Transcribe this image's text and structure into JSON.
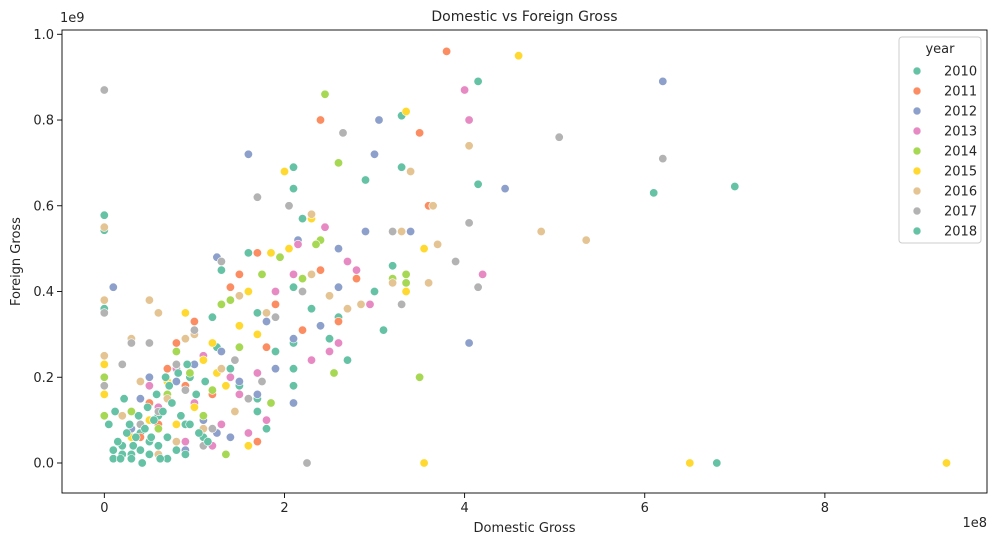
{
  "chart_data": {
    "type": "scatter",
    "title": "Domestic vs Foreign Gross",
    "xlabel": "Domestic Gross",
    "ylabel": "Foreign Gross",
    "x_offset_label": "1e8",
    "y_offset_label": "1e9",
    "xlim": [
      -0.47,
      9.8
    ],
    "ylim": [
      -0.07,
      1.01
    ],
    "xticks": [
      0,
      2,
      4,
      6,
      8
    ],
    "yticks": [
      0.0,
      0.2,
      0.4,
      0.6,
      0.8,
      1.0
    ],
    "xtick_labels": [
      "0",
      "2",
      "4",
      "6",
      "8"
    ],
    "ytick_labels": [
      "0.0",
      "0.2",
      "0.4",
      "0.6",
      "0.8",
      "1.0"
    ],
    "legend": {
      "title": "year",
      "position": "upper right"
    },
    "series": [
      {
        "name": "2010",
        "color": "#66c2a5",
        "points": [
          [
            0.0,
            0.578
          ],
          [
            0.0,
            0.543
          ],
          [
            0.0,
            0.36
          ],
          [
            1.3,
            0.45
          ],
          [
            1.2,
            0.34
          ],
          [
            1.6,
            0.49
          ],
          [
            1.7,
            0.35
          ],
          [
            1.7,
            0.15
          ],
          [
            2.1,
            0.69
          ],
          [
            2.1,
            0.64
          ],
          [
            2.1,
            0.41
          ],
          [
            2.1,
            0.28
          ],
          [
            2.1,
            0.22
          ],
          [
            2.1,
            0.18
          ],
          [
            2.2,
            0.57
          ],
          [
            2.3,
            0.36
          ],
          [
            2.4,
            0.32
          ],
          [
            2.5,
            0.29
          ],
          [
            2.6,
            0.34
          ],
          [
            2.9,
            0.66
          ],
          [
            3.0,
            0.4
          ],
          [
            3.1,
            0.31
          ],
          [
            3.2,
            0.46
          ],
          [
            3.3,
            0.69
          ],
          [
            3.3,
            0.81
          ],
          [
            4.15,
            0.89
          ],
          [
            4.15,
            0.65
          ],
          [
            6.1,
            0.63
          ],
          [
            7.0,
            0.645
          ],
          [
            6.8,
            0.0
          ],
          [
            1.4,
            0.22
          ],
          [
            1.5,
            0.18
          ],
          [
            1.7,
            0.12
          ],
          [
            1.8,
            0.08
          ],
          [
            0.5,
            0.05
          ],
          [
            0.8,
            0.03
          ],
          [
            1.1,
            0.06
          ],
          [
            0.3,
            0.02
          ],
          [
            0.2,
            0.04
          ],
          [
            0.6,
            0.11
          ],
          [
            0.9,
            0.09
          ],
          [
            1.0,
            0.14
          ],
          [
            0.4,
            0.07
          ],
          [
            0.7,
            0.01
          ],
          [
            0.1,
            0.01
          ],
          [
            1.25,
            0.27
          ],
          [
            0.95,
            0.2
          ],
          [
            2.7,
            0.24
          ],
          [
            1.9,
            0.26
          ]
        ]
      },
      {
        "name": "2011",
        "color": "#fc8d62",
        "points": [
          [
            3.8,
            0.96
          ],
          [
            2.4,
            0.8
          ],
          [
            3.5,
            0.77
          ],
          [
            3.6,
            0.6
          ],
          [
            2.4,
            0.45
          ],
          [
            2.8,
            0.43
          ],
          [
            1.7,
            0.49
          ],
          [
            1.5,
            0.44
          ],
          [
            2.6,
            0.33
          ],
          [
            1.8,
            0.27
          ],
          [
            1.4,
            0.41
          ],
          [
            1.7,
            0.05
          ],
          [
            1.6,
            0.04
          ],
          [
            0.8,
            0.28
          ],
          [
            1.0,
            0.33
          ],
          [
            0.5,
            0.14
          ],
          [
            0.9,
            0.18
          ],
          [
            1.2,
            0.16
          ],
          [
            0.4,
            0.06
          ],
          [
            0.7,
            0.22
          ],
          [
            1.9,
            0.37
          ],
          [
            2.2,
            0.31
          ],
          [
            0.6,
            0.09
          ]
        ]
      },
      {
        "name": "2012",
        "color": "#8da0cb",
        "points": [
          [
            6.2,
            0.89
          ],
          [
            1.6,
            0.72
          ],
          [
            3.0,
            0.72
          ],
          [
            3.05,
            0.8
          ],
          [
            4.45,
            0.64
          ],
          [
            3.4,
            0.54
          ],
          [
            2.9,
            0.54
          ],
          [
            2.6,
            0.5
          ],
          [
            2.15,
            0.52
          ],
          [
            1.25,
            0.48
          ],
          [
            0.1,
            0.41
          ],
          [
            2.6,
            0.41
          ],
          [
            2.4,
            0.32
          ],
          [
            2.1,
            0.29
          ],
          [
            4.05,
            0.28
          ],
          [
            1.8,
            0.33
          ],
          [
            1.9,
            0.22
          ],
          [
            2.1,
            0.14
          ],
          [
            1.3,
            0.26
          ],
          [
            0.8,
            0.19
          ],
          [
            1.0,
            0.23
          ],
          [
            1.5,
            0.19
          ],
          [
            1.7,
            0.16
          ],
          [
            1.4,
            0.06
          ],
          [
            1.25,
            0.07
          ],
          [
            0.5,
            0.2
          ],
          [
            0.3,
            0.08
          ],
          [
            0.6,
            0.12
          ],
          [
            0.9,
            0.03
          ],
          [
            1.1,
            0.1
          ],
          [
            0.4,
            0.15
          ]
        ]
      },
      {
        "name": "2013",
        "color": "#e78ac3",
        "points": [
          [
            4.0,
            0.87
          ],
          [
            4.05,
            0.8
          ],
          [
            3.65,
            0.6
          ],
          [
            2.45,
            0.55
          ],
          [
            2.15,
            0.51
          ],
          [
            2.7,
            0.47
          ],
          [
            2.8,
            0.45
          ],
          [
            2.1,
            0.44
          ],
          [
            4.2,
            0.44
          ],
          [
            2.95,
            0.37
          ],
          [
            2.6,
            0.28
          ],
          [
            2.5,
            0.26
          ],
          [
            2.3,
            0.24
          ],
          [
            1.7,
            0.21
          ],
          [
            1.5,
            0.16
          ],
          [
            1.6,
            0.07
          ],
          [
            1.8,
            0.1
          ],
          [
            1.3,
            0.09
          ],
          [
            1.4,
            0.2
          ],
          [
            1.2,
            0.04
          ],
          [
            1.0,
            0.14
          ],
          [
            0.8,
            0.22
          ],
          [
            0.9,
            0.05
          ],
          [
            1.9,
            0.4
          ],
          [
            0.6,
            0.13
          ],
          [
            0.5,
            0.18
          ],
          [
            1.1,
            0.25
          ]
        ]
      },
      {
        "name": "2014",
        "color": "#a6d854",
        "points": [
          [
            2.45,
            0.86
          ],
          [
            2.6,
            0.7
          ],
          [
            2.4,
            0.52
          ],
          [
            2.35,
            0.51
          ],
          [
            2.2,
            0.43
          ],
          [
            3.35,
            0.44
          ],
          [
            3.35,
            0.42
          ],
          [
            3.2,
            0.43
          ],
          [
            1.75,
            0.44
          ],
          [
            1.95,
            0.48
          ],
          [
            1.4,
            0.38
          ],
          [
            1.3,
            0.37
          ],
          [
            2.55,
            0.21
          ],
          [
            3.5,
            0.2
          ],
          [
            1.85,
            0.14
          ],
          [
            1.6,
            0.15
          ],
          [
            1.35,
            0.02
          ],
          [
            1.2,
            0.17
          ],
          [
            0.95,
            0.21
          ],
          [
            0.8,
            0.26
          ],
          [
            1.1,
            0.11
          ],
          [
            0.6,
            0.08
          ],
          [
            0.3,
            0.12
          ],
          [
            0.0,
            0.11
          ],
          [
            0.0,
            0.2
          ],
          [
            0.7,
            0.16
          ],
          [
            1.5,
            0.27
          ]
        ]
      },
      {
        "name": "2015",
        "color": "#ffd92f",
        "points": [
          [
            4.6,
            0.95
          ],
          [
            3.35,
            0.82
          ],
          [
            2.0,
            0.68
          ],
          [
            2.3,
            0.57
          ],
          [
            3.55,
            0.5
          ],
          [
            2.05,
            0.5
          ],
          [
            1.85,
            0.49
          ],
          [
            1.6,
            0.4
          ],
          [
            0.9,
            0.35
          ],
          [
            2.85,
            0.37
          ],
          [
            3.35,
            0.4
          ],
          [
            1.5,
            0.32
          ],
          [
            1.7,
            0.3
          ],
          [
            1.2,
            0.28
          ],
          [
            1.25,
            0.21
          ],
          [
            1.35,
            0.18
          ],
          [
            1.6,
            0.04
          ],
          [
            3.55,
            0.0
          ],
          [
            6.5,
            0.0
          ],
          [
            9.35,
            0.0
          ],
          [
            1.0,
            0.13
          ],
          [
            0.8,
            0.09
          ],
          [
            0.5,
            0.1
          ],
          [
            0.3,
            0.06
          ],
          [
            0.0,
            0.23
          ],
          [
            0.0,
            0.16
          ],
          [
            0.7,
            0.19
          ],
          [
            1.1,
            0.24
          ]
        ]
      },
      {
        "name": "2016",
        "color": "#e5c494",
        "points": [
          [
            4.05,
            0.74
          ],
          [
            3.4,
            0.68
          ],
          [
            3.65,
            0.6
          ],
          [
            3.7,
            0.51
          ],
          [
            5.35,
            0.52
          ],
          [
            4.85,
            0.54
          ],
          [
            3.3,
            0.54
          ],
          [
            2.3,
            0.58
          ],
          [
            0.0,
            0.55
          ],
          [
            0.0,
            0.38
          ],
          [
            0.5,
            0.38
          ],
          [
            0.6,
            0.35
          ],
          [
            0.9,
            0.29
          ],
          [
            2.7,
            0.36
          ],
          [
            2.85,
            0.37
          ],
          [
            3.2,
            0.42
          ],
          [
            3.6,
            0.42
          ],
          [
            2.5,
            0.39
          ],
          [
            2.3,
            0.44
          ],
          [
            1.8,
            0.35
          ],
          [
            1.5,
            0.39
          ],
          [
            1.0,
            0.3
          ],
          [
            0.3,
            0.29
          ],
          [
            0.0,
            0.25
          ],
          [
            0.4,
            0.19
          ],
          [
            0.7,
            0.15
          ],
          [
            1.3,
            0.22
          ],
          [
            1.45,
            0.12
          ],
          [
            1.1,
            0.08
          ],
          [
            0.8,
            0.05
          ],
          [
            0.2,
            0.11
          ],
          [
            0.6,
            0.02
          ]
        ]
      },
      {
        "name": "2017",
        "color": "#b3b3b3",
        "points": [
          [
            0.0,
            0.87
          ],
          [
            2.65,
            0.77
          ],
          [
            5.05,
            0.76
          ],
          [
            6.2,
            0.71
          ],
          [
            1.7,
            0.62
          ],
          [
            2.05,
            0.6
          ],
          [
            3.9,
            0.47
          ],
          [
            4.05,
            0.56
          ],
          [
            3.2,
            0.54
          ],
          [
            4.15,
            0.41
          ],
          [
            3.3,
            0.37
          ],
          [
            2.2,
            0.4
          ],
          [
            1.9,
            0.34
          ],
          [
            1.3,
            0.47
          ],
          [
            0.5,
            0.28
          ],
          [
            0.3,
            0.28
          ],
          [
            0.0,
            0.35
          ],
          [
            1.0,
            0.31
          ],
          [
            1.45,
            0.24
          ],
          [
            1.6,
            0.15
          ],
          [
            1.2,
            0.08
          ],
          [
            0.8,
            0.23
          ],
          [
            0.6,
            0.12
          ],
          [
            0.2,
            0.23
          ],
          [
            0.0,
            0.18
          ],
          [
            2.25,
            0.0
          ],
          [
            1.1,
            0.04
          ],
          [
            0.4,
            0.09
          ],
          [
            0.9,
            0.17
          ],
          [
            1.75,
            0.19
          ]
        ]
      },
      {
        "name": "2018",
        "color": "#66c2a5",
        "points": [
          [
            0.1,
            0.03
          ],
          [
            0.2,
            0.02
          ],
          [
            0.3,
            0.01
          ],
          [
            0.4,
            0.03
          ],
          [
            0.5,
            0.02
          ],
          [
            0.6,
            0.04
          ],
          [
            0.15,
            0.05
          ],
          [
            0.25,
            0.07
          ],
          [
            0.35,
            0.06
          ],
          [
            0.45,
            0.08
          ],
          [
            0.55,
            0.1
          ],
          [
            0.65,
            0.12
          ],
          [
            0.75,
            0.14
          ],
          [
            0.85,
            0.11
          ],
          [
            0.95,
            0.09
          ],
          [
            1.05,
            0.07
          ],
          [
            1.15,
            0.05
          ],
          [
            0.7,
            0.06
          ],
          [
            0.8,
            0.03
          ],
          [
            0.9,
            0.02
          ],
          [
            0.05,
            0.09
          ],
          [
            0.12,
            0.12
          ],
          [
            0.22,
            0.15
          ],
          [
            0.32,
            0.04
          ],
          [
            0.42,
            0.0
          ],
          [
            0.52,
            0.06
          ],
          [
            0.62,
            0.01
          ],
          [
            0.72,
            0.18
          ],
          [
            0.82,
            0.21
          ],
          [
            0.92,
            0.23
          ],
          [
            1.02,
            0.16
          ],
          [
            1.12,
            0.19
          ],
          [
            0.48,
            0.13
          ],
          [
            0.58,
            0.16
          ],
          [
            0.68,
            0.2
          ],
          [
            0.38,
            0.11
          ],
          [
            0.28,
            0.09
          ],
          [
            0.18,
            0.01
          ]
        ]
      }
    ]
  }
}
